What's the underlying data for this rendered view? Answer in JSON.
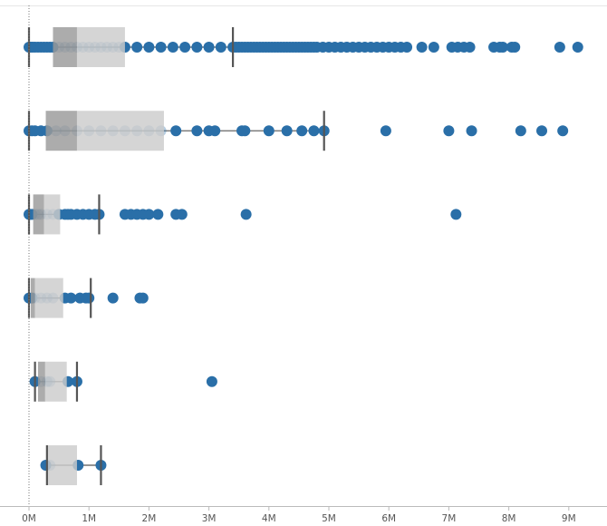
{
  "chart_data": {
    "type": "box-plot",
    "title": "",
    "xlabel": "",
    "ylabel": "",
    "x_unit": "M",
    "xlim": [
      -0.3,
      9.55
    ],
    "x_ticks": [
      0,
      1,
      2,
      3,
      4,
      5,
      6,
      7,
      8,
      9
    ],
    "x_tick_labels": [
      "0M",
      "1M",
      "2M",
      "3M",
      "4M",
      "5M",
      "6M",
      "7M",
      "8M",
      "9M"
    ],
    "zero_reference_line": true,
    "gridlines": false,
    "legend": "none",
    "colors": {
      "point": "#2a6fa8",
      "box_lower": "#9a9a9a",
      "box_upper": "#cccccc",
      "whisker": "#555555",
      "axis": "#bbbbbb",
      "reference_line": "#777777"
    },
    "rows": [
      {
        "whisker_low": 0.0,
        "q1": 0.4,
        "median": 0.8,
        "q3": 1.6,
        "whisker_high": 3.4,
        "points": [
          0.0,
          0.03,
          0.06,
          0.1,
          0.15,
          0.2,
          0.25,
          0.3,
          0.35,
          0.4,
          0.5,
          0.6,
          0.7,
          0.8,
          0.9,
          1.0,
          1.1,
          1.2,
          1.3,
          1.4,
          1.5,
          1.6,
          1.8,
          2.0,
          2.2,
          2.4,
          2.6,
          2.8,
          3.0,
          3.2,
          3.4,
          3.45,
          3.5,
          3.55,
          3.6,
          3.65,
          3.7,
          3.75,
          3.8,
          3.85,
          3.9,
          3.95,
          4.0,
          4.05,
          4.1,
          4.15,
          4.2,
          4.25,
          4.3,
          4.35,
          4.4,
          4.45,
          4.5,
          4.55,
          4.6,
          4.65,
          4.7,
          4.75,
          4.8,
          4.9,
          5.0,
          5.1,
          5.2,
          5.3,
          5.4,
          5.5,
          5.6,
          5.7,
          5.8,
          5.9,
          6.0,
          6.1,
          6.2,
          6.3,
          6.55,
          6.75,
          7.05,
          7.15,
          7.25,
          7.35,
          7.75,
          7.85,
          7.9,
          8.05,
          8.1,
          8.85,
          9.15
        ]
      },
      {
        "whisker_low": 0.0,
        "q1": 0.28,
        "median": 0.8,
        "q3": 2.25,
        "whisker_high": 4.92,
        "points": [
          0.0,
          0.05,
          0.1,
          0.2,
          0.3,
          0.45,
          0.6,
          0.8,
          1.0,
          1.2,
          1.4,
          1.6,
          1.8,
          2.0,
          2.2,
          2.45,
          2.8,
          3.0,
          3.1,
          3.55,
          3.6,
          4.0,
          4.3,
          4.55,
          4.75,
          4.92,
          5.95,
          7.0,
          7.38,
          8.2,
          8.55,
          8.9
        ]
      },
      {
        "whisker_low": 0.0,
        "q1": 0.07,
        "median": 0.25,
        "q3": 0.52,
        "whisker_high": 1.17,
        "points": [
          0.0,
          0.02,
          0.05,
          0.1,
          0.15,
          0.2,
          0.3,
          0.4,
          0.5,
          0.6,
          0.65,
          0.7,
          0.8,
          0.9,
          1.0,
          1.1,
          1.17,
          1.6,
          1.7,
          1.8,
          1.9,
          2.0,
          2.15,
          2.45,
          2.55,
          3.62,
          7.12
        ]
      },
      {
        "whisker_low": 0.0,
        "q1": 0.03,
        "median": 0.1,
        "q3": 0.57,
        "whisker_high": 1.03,
        "points": [
          0.0,
          0.05,
          0.1,
          0.2,
          0.3,
          0.4,
          0.6,
          0.7,
          0.85,
          0.95,
          1.0,
          1.4,
          1.85,
          1.9
        ]
      },
      {
        "whisker_low": 0.1,
        "q1": 0.15,
        "median": 0.27,
        "q3": 0.63,
        "whisker_high": 0.8,
        "points": [
          0.1,
          0.2,
          0.3,
          0.35,
          0.65,
          0.8,
          3.05
        ]
      },
      {
        "whisker_low": 0.3,
        "q1": 0.3,
        "median": 0.3,
        "q3": 0.8,
        "whisker_high": 1.2,
        "points": [
          0.28,
          0.35,
          0.82,
          1.2
        ]
      }
    ]
  }
}
